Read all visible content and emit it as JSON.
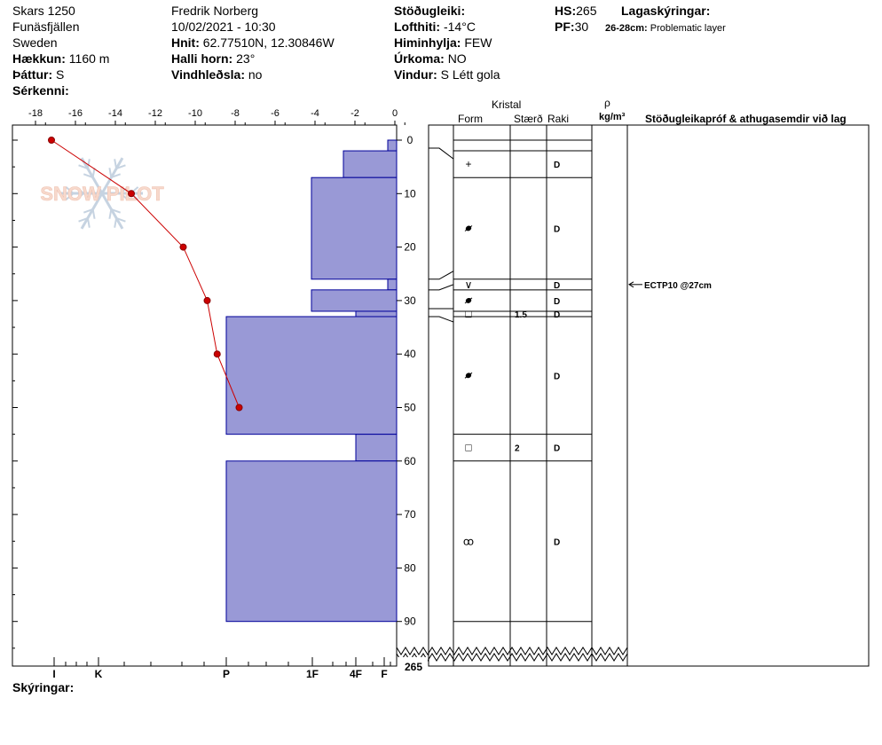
{
  "header": {
    "site": "Skars 1250",
    "area": "Funäsfjällen",
    "country": "Sweden",
    "elevation_label": "Hækkun:",
    "elevation": "1160 m",
    "aspect_label": "Þáttur:",
    "aspect": "S",
    "features_label": "Sérkenni:",
    "observer": "Fredrik Norberg",
    "datetime": "10/02/2021 - 10:30",
    "coords_label": "Hnit:",
    "coords": "62.77510N, 12.30846W",
    "slope_label": "Halli horn:",
    "slope": "23°",
    "windload_label": "Vindhleðsla:",
    "windload": "no",
    "stability_label": "Stöðugleiki:",
    "airtemp_label": "Lofthiti:",
    "airtemp": "-14°C",
    "sky_label": "Himinhylja:",
    "sky": "FEW",
    "precip_label": "Úrkoma:",
    "precip": "NO",
    "wind_label": "Vindur:",
    "wind": "S Létt gola",
    "hs_label": "HS:",
    "hs": "265",
    "pf_label": "PF:",
    "pf": "30",
    "layer_notes_label": "Lagaskýringar:",
    "layer_note_range": "26-28cm:",
    "layer_note_text": "Problematic layer"
  },
  "table_headers": {
    "crystal": "Kristal",
    "form": "Form",
    "size": "Stærð",
    "moisture": "Raki",
    "rho": "ρ",
    "density_unit": "kg/m³",
    "comments": "Stöðugleikapróf & athugasemdir við lag"
  },
  "footer": {
    "comments_label": "Skýringar:"
  },
  "watermark": "SNOW PILOT",
  "colors": {
    "hardness_fill": "#9999d6",
    "hardness_stroke": "#000099",
    "temp_line": "#cc0000"
  },
  "chart_data": {
    "type": "snow_profile",
    "temperature_axis": {
      "ticks": [
        -18,
        -16,
        -14,
        -12,
        -10,
        -8,
        -6,
        -4,
        -2,
        0
      ],
      "range": [
        -19.5,
        0
      ]
    },
    "depth_axis": {
      "ticks": [
        0,
        10,
        20,
        30,
        40,
        50,
        60,
        70,
        80,
        90
      ],
      "range": [
        0,
        100
      ],
      "bottom_label": "265"
    },
    "hardness_scale": [
      "I",
      "K",
      "P",
      "1F",
      "4F",
      "F"
    ],
    "temperature_profile": [
      {
        "depth": 0,
        "temp": -17.2
      },
      {
        "depth": 10,
        "temp": -13.2
      },
      {
        "depth": 20,
        "temp": -10.6
      },
      {
        "depth": 30,
        "temp": -9.4
      },
      {
        "depth": 40,
        "temp": -8.9
      },
      {
        "depth": 50,
        "temp": -7.8
      }
    ],
    "hardness_bars": [
      {
        "top": 0,
        "bottom": 2,
        "hardness": "F"
      },
      {
        "top": 2,
        "bottom": 7,
        "hardness": "4F-"
      },
      {
        "top": 7,
        "bottom": 26,
        "hardness": "1F"
      },
      {
        "top": 26,
        "bottom": 28,
        "hardness": "F"
      },
      {
        "top": 28,
        "bottom": 32,
        "hardness": "1F"
      },
      {
        "top": 32,
        "bottom": 33,
        "hardness": "4F"
      },
      {
        "top": 33,
        "bottom": 55,
        "hardness": "P"
      },
      {
        "top": 55,
        "bottom": 60,
        "hardness": "4F"
      },
      {
        "top": 60,
        "bottom": 90,
        "hardness": "P"
      }
    ],
    "layers": [
      {
        "top": 0,
        "bottom": 2,
        "form": "",
        "size": "",
        "moisture": ""
      },
      {
        "top": 2,
        "bottom": 7,
        "form": "+",
        "size": "",
        "moisture": "D"
      },
      {
        "top": 7,
        "bottom": 26,
        "form": "dot",
        "size": "",
        "moisture": "D"
      },
      {
        "top": 26,
        "bottom": 28,
        "form": "∨",
        "size": "",
        "moisture": "D"
      },
      {
        "top": 28,
        "bottom": 32,
        "form": "dot",
        "size": "",
        "moisture": "D"
      },
      {
        "top": 32,
        "bottom": 33,
        "form": "□",
        "size": "1.5",
        "moisture": "D"
      },
      {
        "top": 33,
        "bottom": 55,
        "form": "dot",
        "size": "",
        "moisture": "D"
      },
      {
        "top": 55,
        "bottom": 60,
        "form": "□",
        "size": "2",
        "moisture": "D"
      },
      {
        "top": 60,
        "bottom": 90,
        "form": "ꝏ",
        "size": "",
        "moisture": "D"
      }
    ],
    "stability_tests": [
      {
        "depth": 27,
        "text": "ECTP10 @27cm"
      }
    ]
  }
}
